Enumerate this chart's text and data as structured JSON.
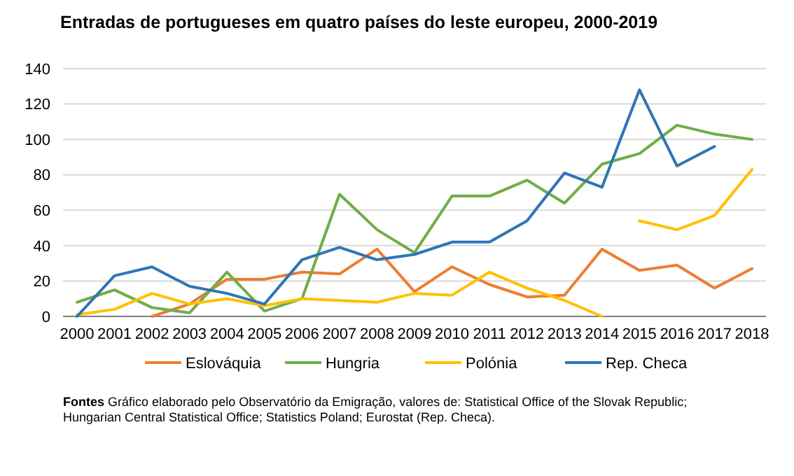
{
  "chart_data": {
    "type": "line",
    "title": "Entradas de portugueses em quatro países do leste europeu, 2000-2019",
    "categories": [
      "2000",
      "2001",
      "2002",
      "2003",
      "2004",
      "2005",
      "2006",
      "2007",
      "2008",
      "2009",
      "2010",
      "2011",
      "2012",
      "2013",
      "2014",
      "2015",
      "2016",
      "2017",
      "2018"
    ],
    "series": [
      {
        "name": "Eslováquia",
        "color": "#ed7d31",
        "values": [
          null,
          null,
          0,
          7,
          21,
          21,
          25,
          24,
          38,
          14,
          28,
          18,
          11,
          12,
          38,
          26,
          29,
          16,
          27
        ]
      },
      {
        "name": "Hungria",
        "color": "#70ad47",
        "values": [
          8,
          15,
          5,
          2,
          25,
          3,
          10,
          69,
          49,
          36,
          68,
          68,
          77,
          64,
          86,
          92,
          108,
          103,
          100
        ]
      },
      {
        "name": "Polónia",
        "color": "#ffc000",
        "values": [
          1,
          4,
          13,
          7,
          10,
          6,
          10,
          9,
          8,
          13,
          12,
          25,
          16,
          9,
          0,
          null,
          null,
          null,
          null
        ]
      },
      {
        "color": "#ffc000",
        "values": [
          null,
          null,
          null,
          null,
          null,
          null,
          null,
          null,
          null,
          null,
          null,
          null,
          null,
          null,
          null,
          54,
          49,
          57,
          83
        ]
      },
      {
        "name": "Rep. Checa",
        "color": "#2e75b6",
        "values": [
          0,
          23,
          28,
          17,
          13,
          7,
          32,
          39,
          32,
          35,
          42,
          42,
          54,
          81,
          73,
          128,
          85,
          96,
          null
        ]
      }
    ],
    "ylim": [
      0,
      140
    ],
    "yticks": [
      0,
      20,
      40,
      60,
      80,
      100,
      120,
      140
    ],
    "grid": "y",
    "legend": "bottom",
    "line_style": "solid",
    "marker": "none",
    "annotations": [
      "Fontes  Gráfico elaborado  pelo Observatório da Emigração,  valores de: Statistical Office of the Slovak Republic; Hungarian Central Statistical Office; Statistics Poland; Eurostat (Rep. Checa)."
    ]
  }
}
